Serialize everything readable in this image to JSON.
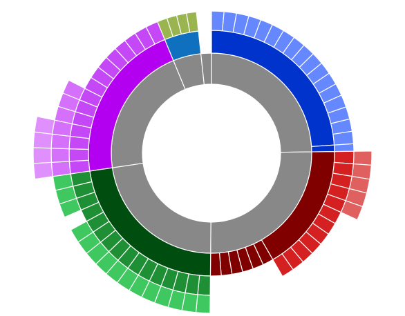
{
  "chart_data": {
    "type": "sunburst",
    "root": {
      "children": [
        {
          "colors": [
            "#888888",
            "#0033cc",
            "#6688ff"
          ],
          "children": [
            {
              "children": [
                {
                  "value": 5
                },
                {
                  "value": 5
                },
                {
                  "value": 5
                },
                {
                  "value": 5
                },
                {
                  "value": 5
                },
                {
                  "value": 5
                },
                {
                  "value": 5
                },
                {
                  "value": 5
                },
                {
                  "value": 5
                },
                {
                  "value": 5
                },
                {
                  "value": 5
                },
                {
                  "value": 5
                },
                {
                  "value": 5
                },
                {
                  "value": 5
                },
                {
                  "value": 5
                },
                {
                  "value": 5
                },
                {
                  "value": 5
                }
              ]
            },
            {
              "children": [
                {
                  "value": 3
                }
              ]
            }
          ]
        },
        {
          "colors": [
            "#888888",
            "#800000",
            "#d42020",
            "#e06060"
          ],
          "children": [
            {
              "children": [
                {
                  "children": [
                    {
                      "value": 5
                    }
                  ]
                },
                {
                  "children": [
                    {
                      "value": 5
                    }
                  ]
                },
                {
                  "children": [
                    {
                      "value": 5
                    }
                  ]
                },
                {
                  "children": [
                    {
                      "value": 5
                    }
                  ]
                },
                {
                  "children": [
                    {
                      "value": 5
                    }
                  ]
                },
                {
                  "value": 5
                },
                {
                  "value": 5
                },
                {
                  "value": 5
                },
                {
                  "value": 5
                },
                {
                  "value": 5
                },
                {
                  "value": 5
                },
                {
                  "value": 5
                }
              ]
            },
            {
              "value": 5
            },
            {
              "value": 5
            },
            {
              "value": 5
            },
            {
              "value": 5
            },
            {
              "value": 5
            },
            {
              "value": 5
            }
          ]
        },
        {
          "colors": [
            "#888888",
            "#004d10",
            "#1f8f35",
            "#40c860"
          ],
          "children": [
            {
              "children": [
                {
                  "children": [
                    {
                      "value": 5
                    }
                  ]
                },
                {
                  "children": [
                    {
                      "value": 5
                    }
                  ]
                },
                {
                  "children": [
                    {
                      "value": 5
                    }
                  ]
                },
                {
                  "children": [
                    {
                      "value": 5
                    }
                  ]
                },
                {
                  "children": [
                    {
                      "value": 5
                    }
                  ]
                },
                {
                  "children": [
                    {
                      "value": 5
                    }
                  ]
                },
                {
                  "children": [
                    {
                      "value": 5
                    }
                  ]
                },
                {
                  "children": [
                    {
                      "value": 5
                    }
                  ]
                },
                {
                  "children": [
                    {
                      "value": 5
                    }
                  ]
                },
                {
                  "children": [
                    {
                      "value": 5
                    }
                  ]
                },
                {
                  "children": [
                    {
                      "value": 5
                    }
                  ]
                },
                {
                  "children": [
                    {
                      "value": 5
                    }
                  ]
                },
                {
                  "value": 5
                },
                {
                  "children": [
                    {
                      "value": 5
                    }
                  ]
                },
                {
                  "children": [
                    {
                      "value": 5
                    }
                  ]
                },
                {
                  "children": [
                    {
                      "value": 5
                    }
                  ]
                }
              ]
            }
          ]
        },
        {
          "colors": [
            "#888888",
            "#b400f0",
            "#c448f5",
            "#d470fa",
            "#e090fc"
          ],
          "children": [
            {
              "children": [
                {
                  "children": [
                    {
                      "value": 5,
                      "children": [
                        {
                          "value": 5
                        }
                      ]
                    }
                  ]
                },
                {
                  "children": [
                    {
                      "children": [
                        {
                          "value": 5
                        }
                      ]
                    }
                  ]
                },
                {
                  "children": [
                    {
                      "children": [
                        {
                          "value": 5
                        }
                      ]
                    }
                  ]
                },
                {
                  "children": [
                    {
                      "children": [
                        {
                          "value": 5
                        }
                      ]
                    }
                  ]
                },
                {
                  "children": [
                    {
                      "value": 5
                    }
                  ]
                },
                {
                  "children": [
                    {
                      "value": 5
                    }
                  ]
                },
                {
                  "children": [
                    {
                      "value": 5
                    }
                  ]
                },
                {
                  "value": 5
                },
                {
                  "value": 5
                },
                {
                  "value": 5
                },
                {
                  "value": 5
                },
                {
                  "value": 5
                },
                {
                  "value": 5
                },
                {
                  "value": 5
                },
                {
                  "value": 5
                }
              ]
            }
          ]
        },
        {
          "colors": [
            "#888888",
            "#1070c0",
            "#9ab550"
          ],
          "children": [
            {
              "children": [
                {
                  "value": 4
                },
                {
                  "value": 4
                },
                {
                  "value": 4
                },
                {
                  "value": 4
                }
              ]
            }
          ]
        },
        {
          "colors": [
            "#888888"
          ],
          "value": 6
        }
      ]
    }
  }
}
